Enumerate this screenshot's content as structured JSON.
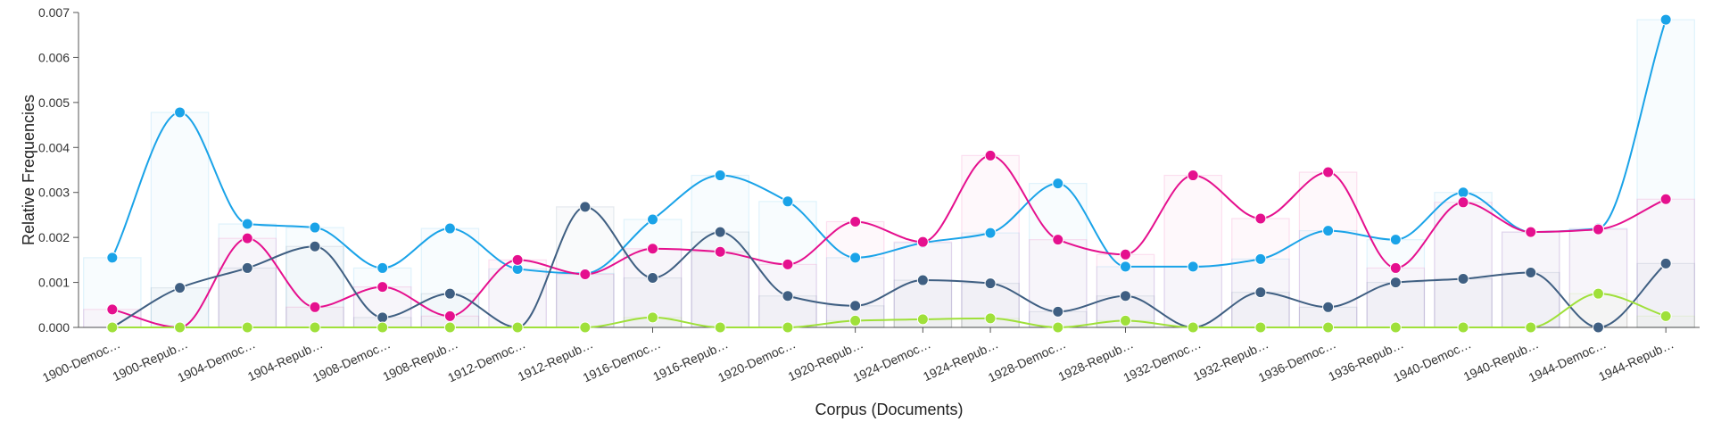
{
  "chart_data": {
    "type": "line",
    "xlabel": "Corpus (Documents)",
    "ylabel": "Relative Frequencies",
    "ylim": [
      0,
      0.007
    ],
    "yticks": [
      "0.000",
      "0.001",
      "0.002",
      "0.003",
      "0.004",
      "0.005",
      "0.006",
      "0.007"
    ],
    "grid": false,
    "categories": [
      "1900-Democ…",
      "1900-Repub…",
      "1904-Democ…",
      "1904-Repub…",
      "1908-Democ…",
      "1908-Repub…",
      "1912-Democ…",
      "1912-Repub…",
      "1916-Democ…",
      "1916-Repub…",
      "1920-Democ…",
      "1920-Repub…",
      "1924-Democ…",
      "1924-Repub…",
      "1928-Democ…",
      "1928-Repub…",
      "1932-Democ…",
      "1932-Repub…",
      "1936-Democ…",
      "1936-Repub…",
      "1940-Democ…",
      "1940-Repub…",
      "1944-Democ…",
      "1944-Repub…"
    ],
    "series": [
      {
        "color": "#1aa3e8",
        "values": [
          0.00155,
          0.00478,
          0.0023,
          0.00222,
          0.00132,
          0.0022,
          0.0013,
          0.0012,
          0.0024,
          0.00338,
          0.0028,
          0.00155,
          0.00188,
          0.0021,
          0.0032,
          0.00135,
          0.00135,
          0.00152,
          0.00215,
          0.00195,
          0.003,
          0.00212,
          0.0022,
          0.00684
        ]
      },
      {
        "color": "#e5108e",
        "values": [
          0.0004,
          0,
          0.00198,
          0.00045,
          0.0009,
          0.00025,
          0.0015,
          0.00118,
          0.00175,
          0.00168,
          0.0014,
          0.00235,
          0.0019,
          0.00382,
          0.00195,
          0.00162,
          0.00338,
          0.00242,
          0.00345,
          0.00132,
          0.00278,
          0.00212,
          0.00218,
          0.00285
        ]
      },
      {
        "color": "#3f5f82",
        "values": [
          0,
          0.00088,
          0.00132,
          0.0018,
          0.00022,
          0.00075,
          0,
          0.00268,
          0.0011,
          0.00212,
          0.0007,
          0.00048,
          0.00105,
          0.00098,
          0.00035,
          0.0007,
          0,
          0.00078,
          0.00045,
          0.001,
          0.00108,
          0.00122,
          0,
          0.00142
        ]
      },
      {
        "color": "#9fe03a",
        "values": [
          0,
          0,
          0,
          0,
          0,
          0,
          0,
          0,
          0.00022,
          0,
          0,
          0.00015,
          0.00018,
          0.0002,
          0,
          0.00015,
          0,
          0,
          0,
          0,
          0,
          0,
          0.00075,
          0.00025
        ]
      }
    ]
  }
}
